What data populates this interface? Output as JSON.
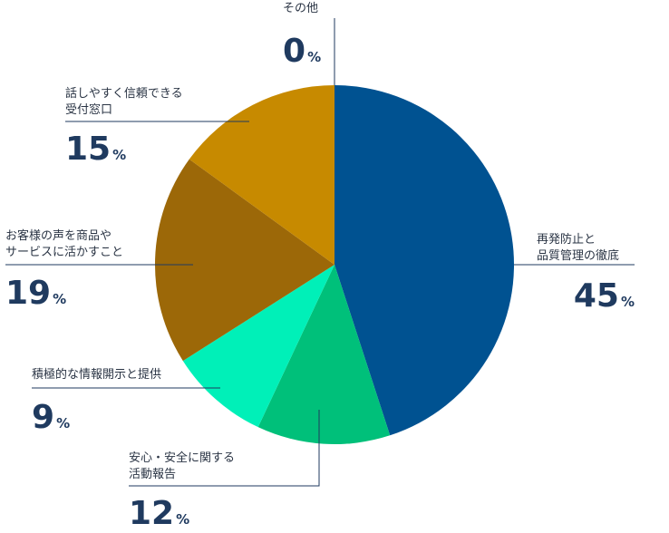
{
  "chart_data": {
    "type": "pie",
    "slices": [
      {
        "label_lines": [
          "再発防止と",
          "品質管理の徹底"
        ],
        "value": 45,
        "color": "#005291"
      },
      {
        "label_lines": [
          "安心・安全に関する",
          "活動報告"
        ],
        "value": 12,
        "color": "#00c07a"
      },
      {
        "label_lines": [
          "積極的な情報開示と提供"
        ],
        "value": 9,
        "color": "#00f0b8"
      },
      {
        "label_lines": [
          "お客様の声を商品や",
          "サービスに活かすこと"
        ],
        "value": 19,
        "color": "#9c6808"
      },
      {
        "label_lines": [
          "話しやすく信頼できる",
          "受付窓口"
        ],
        "value": 15,
        "color": "#c78a00"
      },
      {
        "label_lines": [
          "その他"
        ],
        "value": 0,
        "color": "#cccccc"
      }
    ],
    "unit": "%"
  }
}
